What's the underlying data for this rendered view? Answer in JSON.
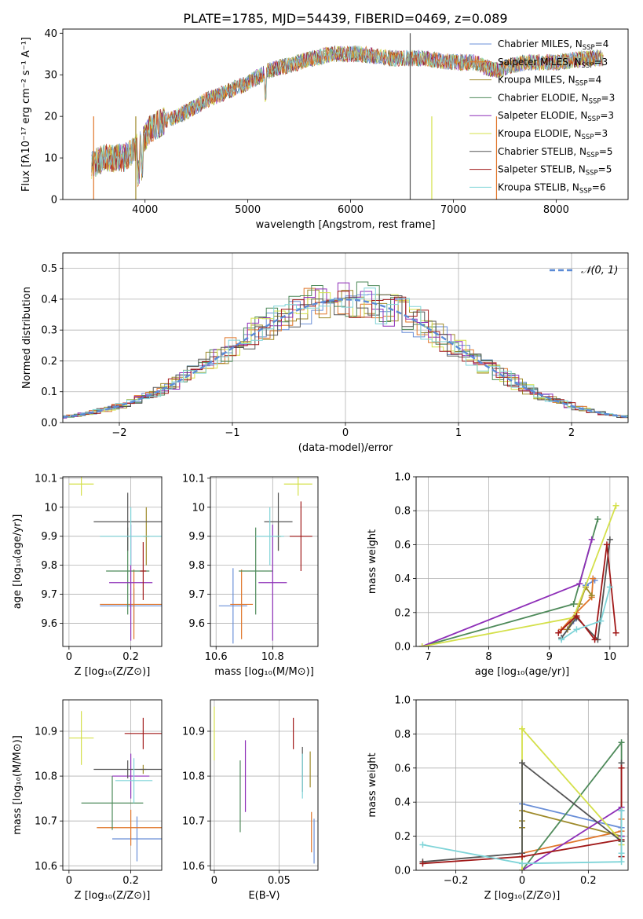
{
  "figure_title": "PLATE=1785, MJD=54439, FIBERID=0469, z=0.089",
  "colors": [
    "#6a8fd8",
    "#e0762a",
    "#9e8a2a",
    "#4e8a5a",
    "#8e2fb8",
    "#d4e04a",
    "#555555",
    "#a01818",
    "#7fd4d8"
  ],
  "chart_data": [
    {
      "id": "spectrum",
      "type": "line",
      "xlabel": "wavelength [Angstrom, rest frame]",
      "ylabel": "Flux [fλ10⁻¹⁷ erg cm⁻² s⁻¹ A⁻¹]",
      "xlim": [
        3200,
        8700
      ],
      "ylim": [
        0,
        41
      ],
      "xticks": [
        4000,
        5000,
        6000,
        7000,
        8000
      ],
      "yticks": [
        0,
        10,
        20,
        30,
        40
      ],
      "grid": false,
      "legend_position": "right",
      "continuum": {
        "x": [
          3450,
          3600,
          3800,
          3950,
          4050,
          4200,
          4400,
          4600,
          4800,
          5000,
          5200,
          5500,
          5800,
          6100,
          6400,
          6700,
          7000,
          7200,
          7400,
          7700,
          8000,
          8300,
          8460
        ],
        "y": [
          8,
          10,
          10,
          13,
          17,
          19,
          21,
          24,
          26,
          28,
          31,
          33,
          35,
          35,
          34,
          34,
          33,
          33,
          31,
          33,
          33,
          34,
          34
        ]
      },
      "series": [
        {
          "name": "Chabrier MILES, N",
          "sub": "SSP",
          "suffix": "=4"
        },
        {
          "name": "Salpeter MILES, N",
          "sub": "SSP",
          "suffix": "=3"
        },
        {
          "name": "Kroupa MILES, N",
          "sub": "SSP",
          "suffix": "=4"
        },
        {
          "name": "Chabrier ELODIE, N",
          "sub": "SSP",
          "suffix": "=3"
        },
        {
          "name": "Salpeter ELODIE, N",
          "sub": "SSP",
          "suffix": "=3"
        },
        {
          "name": "Kroupa ELODIE, N",
          "sub": "SSP",
          "suffix": "=3"
        },
        {
          "name": "Chabrier STELIB, N",
          "sub": "SSP",
          "suffix": "=5"
        },
        {
          "name": "Salpeter STELIB, N",
          "sub": "SSP",
          "suffix": "=5"
        },
        {
          "name": "Kroupa STELIB, N",
          "sub": "SSP",
          "suffix": "=6"
        }
      ]
    },
    {
      "id": "residuals",
      "type": "area",
      "xlabel": "(data-model)/error",
      "ylabel": "Normed distribution",
      "xlim": [
        -2.5,
        2.5
      ],
      "ylim": [
        0,
        0.55
      ],
      "xticks": [
        -2,
        -1,
        0,
        1,
        2
      ],
      "yticks": [
        0.0,
        0.1,
        0.2,
        0.3,
        0.4,
        0.5
      ],
      "grid": true,
      "legend": "𝒩(0, 1)",
      "legend_position": "top-right",
      "gaussian": {
        "mean": 0,
        "sigma": 1
      }
    },
    {
      "id": "z_age",
      "type": "scatter",
      "xlabel": "Z [log₁₀(Z/Z⊙)]",
      "ylabel": "age  [log₁₀(age/yr)]",
      "xlim": [
        -0.02,
        0.3
      ],
      "ylim": [
        9.52,
        10.105
      ],
      "xticks": [
        0.0,
        0.2
      ],
      "yticks": [
        9.6,
        9.7,
        9.8,
        9.9,
        10.0,
        10.1
      ],
      "grid": true,
      "points": [
        {
          "x": 0.21,
          "xerr": 0.11,
          "y": 9.66,
          "yerr": 0.06
        },
        {
          "x": 0.21,
          "xerr": 0.11,
          "y": 9.665,
          "yerr": 0.12
        },
        {
          "x": 0.25,
          "xerr": 0.01,
          "y": 9.9,
          "yerr": 0.1
        },
        {
          "x": 0.19,
          "xerr": 0.07,
          "y": 9.78,
          "yerr": 0.15
        },
        {
          "x": 0.2,
          "xerr": 0.07,
          "y": 9.74,
          "yerr": 0.2
        },
        {
          "x": 0.04,
          "xerr": 0.04,
          "y": 10.08,
          "yerr": 0.04
        },
        {
          "x": 0.19,
          "xerr": 0.11,
          "y": 9.95,
          "yerr": 0.1
        },
        {
          "x": 0.24,
          "xerr": 0.01,
          "y": 9.78,
          "yerr": 0.1
        },
        {
          "x": 0.2,
          "xerr": 0.1,
          "y": 9.9,
          "yerr": 0.1
        }
      ]
    },
    {
      "id": "mass_age",
      "type": "scatter",
      "xlabel": "mass [log₁₀(M/M⊙)]",
      "xlim": [
        10.58,
        10.96
      ],
      "ylim": [
        9.52,
        10.105
      ],
      "xticks": [
        10.6,
        10.8
      ],
      "yticks": [
        9.6,
        9.7,
        9.8,
        9.9,
        10.0,
        10.1
      ],
      "grid": true,
      "points": [
        {
          "x": 10.66,
          "xerr": 0.05,
          "y": 9.66,
          "yerr": 0.13
        },
        {
          "x": 10.69,
          "xerr": 0.04,
          "y": 9.665,
          "yerr": 0.12
        },
        {
          "x": 10.82,
          "xerr": 0.01,
          "y": 9.9,
          "yerr": 0.05
        },
        {
          "x": 10.74,
          "xerr": 0.06,
          "y": 9.78,
          "yerr": 0.15
        },
        {
          "x": 10.8,
          "xerr": 0.05,
          "y": 9.74,
          "yerr": 0.2
        },
        {
          "x": 10.89,
          "xerr": 0.05,
          "y": 10.08,
          "yerr": 0.04
        },
        {
          "x": 10.82,
          "xerr": 0.05,
          "y": 9.95,
          "yerr": 0.1
        },
        {
          "x": 10.9,
          "xerr": 0.04,
          "y": 9.9,
          "yerr": 0.12
        },
        {
          "x": 10.79,
          "xerr": 0.05,
          "y": 9.9,
          "yerr": 0.1
        }
      ]
    },
    {
      "id": "age_weight",
      "type": "line",
      "xlabel": "age  [log₁₀(age/yr)]",
      "ylabel": "mass weight",
      "xlim": [
        6.8,
        10.3
      ],
      "ylim": [
        0,
        1
      ],
      "xticks": [
        7,
        8,
        9,
        10
      ],
      "yticks": [
        0.0,
        0.2,
        0.4,
        0.6,
        0.8,
        1.0
      ],
      "grid": true,
      "series": [
        {
          "x": [
            9.2,
            9.4,
            9.6,
            9.75
          ],
          "y": [
            0.05,
            0.15,
            0.36,
            0.39
          ]
        },
        {
          "x": [
            9.2,
            9.45,
            9.7,
            9.72
          ],
          "y": [
            0.1,
            0.2,
            0.29,
            0.4
          ]
        },
        {
          "x": [
            9.3,
            9.5,
            9.6,
            9.7
          ],
          "y": [
            0.1,
            0.25,
            0.35,
            0.3
          ]
        },
        {
          "x": [
            6.9,
            9.4,
            9.8
          ],
          "y": [
            0.0,
            0.25,
            0.75
          ]
        },
        {
          "x": [
            6.9,
            9.5,
            9.7
          ],
          "y": [
            0.0,
            0.37,
            0.63
          ]
        },
        {
          "x": [
            6.9,
            9.4,
            10.1
          ],
          "y": [
            0.0,
            0.17,
            0.83
          ]
        },
        {
          "x": [
            9.2,
            9.45,
            9.8,
            10.0
          ],
          "y": [
            0.05,
            0.17,
            0.04,
            0.63
          ]
        },
        {
          "x": [
            9.15,
            9.45,
            9.75,
            9.95,
            10.1
          ],
          "y": [
            0.08,
            0.18,
            0.04,
            0.6,
            0.08
          ]
        },
        {
          "x": [
            9.2,
            9.45,
            9.85,
            10.0
          ],
          "y": [
            0.04,
            0.1,
            0.15,
            0.35
          ]
        }
      ]
    },
    {
      "id": "z_mass",
      "type": "scatter",
      "xlabel": "Z [log₁₀(Z/Z⊙)]",
      "ylabel": "mass [log₁₀(M/M⊙)]",
      "xlim": [
        -0.02,
        0.3
      ],
      "ylim": [
        10.59,
        10.97
      ],
      "xticks": [
        0.0,
        0.2
      ],
      "yticks": [
        10.6,
        10.7,
        10.8,
        10.9
      ],
      "grid": true,
      "points": [
        {
          "x": 0.22,
          "xerr": 0.08,
          "y": 10.66,
          "yerr": 0.05
        },
        {
          "x": 0.2,
          "xerr": 0.11,
          "y": 10.685,
          "yerr": 0.04
        },
        {
          "x": 0.24,
          "xerr": 0.01,
          "y": 10.815,
          "yerr": 0.01
        },
        {
          "x": 0.14,
          "xerr": 0.1,
          "y": 10.74,
          "yerr": 0.06
        },
        {
          "x": 0.2,
          "xerr": 0.06,
          "y": 10.8,
          "yerr": 0.05
        },
        {
          "x": 0.04,
          "xerr": 0.04,
          "y": 10.885,
          "yerr": 0.06
        },
        {
          "x": 0.19,
          "xerr": 0.11,
          "y": 10.815,
          "yerr": 0.02
        },
        {
          "x": 0.24,
          "xerr": 0.06,
          "y": 10.895,
          "yerr": 0.035
        },
        {
          "x": 0.21,
          "xerr": 0.06,
          "y": 10.79,
          "yerr": 0.05
        }
      ]
    },
    {
      "id": "ebv_mass",
      "type": "scatter",
      "xlabel": "E(B-V)",
      "xlim": [
        -0.003,
        0.08
      ],
      "ylim": [
        10.59,
        10.97
      ],
      "xticks": [
        0.0,
        0.05
      ],
      "yticks": [
        10.6,
        10.7,
        10.8,
        10.9
      ],
      "grid": true,
      "points": [
        {
          "x": 0.077,
          "y": 10.655,
          "yerr": 0.05
        },
        {
          "x": 0.075,
          "y": 10.675,
          "yerr": 0.045
        },
        {
          "x": 0.074,
          "y": 10.815,
          "yerr": 0.04
        },
        {
          "x": 0.02,
          "y": 10.755,
          "yerr": 0.08
        },
        {
          "x": 0.024,
          "y": 10.8,
          "yerr": 0.08
        },
        {
          "x": 0.0,
          "y": 10.895,
          "yerr": 0.06
        },
        {
          "x": 0.068,
          "y": 10.815,
          "yerr": 0.05
        },
        {
          "x": 0.061,
          "y": 10.895,
          "yerr": 0.035
        },
        {
          "x": 0.068,
          "y": 10.8,
          "yerr": 0.05
        }
      ]
    },
    {
      "id": "z_weight",
      "type": "line",
      "xlabel": "Z [log₁₀(Z/Z⊙)]",
      "ylabel": "mass weight",
      "xlim": [
        -0.32,
        0.32
      ],
      "ylim": [
        0,
        1
      ],
      "xticks": [
        -0.2,
        0.0,
        0.2
      ],
      "yticks": [
        0.0,
        0.2,
        0.4,
        0.6,
        0.8,
        1.0
      ],
      "grid": true,
      "series": [
        {
          "x": [
            0.0,
            0.0,
            0.3,
            0.3
          ],
          "y": [
            0.0,
            0.39,
            0.25,
            0.35
          ]
        },
        {
          "x": [
            0.0,
            0.0,
            0.3,
            0.3
          ],
          "y": [
            0.08,
            0.1,
            0.23,
            0.3
          ]
        },
        {
          "x": [
            0.0,
            0.0,
            0.0,
            0.3
          ],
          "y": [
            0.25,
            0.29,
            0.35,
            0.2
          ]
        },
        {
          "x": [
            0.0,
            0.3,
            0.3
          ],
          "y": [
            0.0,
            0.75,
            0.2
          ]
        },
        {
          "x": [
            0.0,
            0.3,
            0.3
          ],
          "y": [
            0.0,
            0.37,
            0.2
          ]
        },
        {
          "x": [
            0.0,
            0.0,
            0.3,
            0.3
          ],
          "y": [
            0.0,
            0.83,
            0.17,
            0.15
          ]
        },
        {
          "x": [
            -0.3,
            0.0,
            0.0,
            0.3,
            0.3
          ],
          "y": [
            0.05,
            0.1,
            0.63,
            0.17,
            0.63
          ]
        },
        {
          "x": [
            -0.3,
            0.0,
            0.3,
            0.3,
            0.3
          ],
          "y": [
            0.04,
            0.08,
            0.18,
            0.6,
            0.08
          ]
        },
        {
          "x": [
            -0.3,
            0.0,
            0.3,
            0.3,
            0.3
          ],
          "y": [
            0.15,
            0.04,
            0.05,
            0.1,
            0.35
          ]
        }
      ]
    }
  ]
}
